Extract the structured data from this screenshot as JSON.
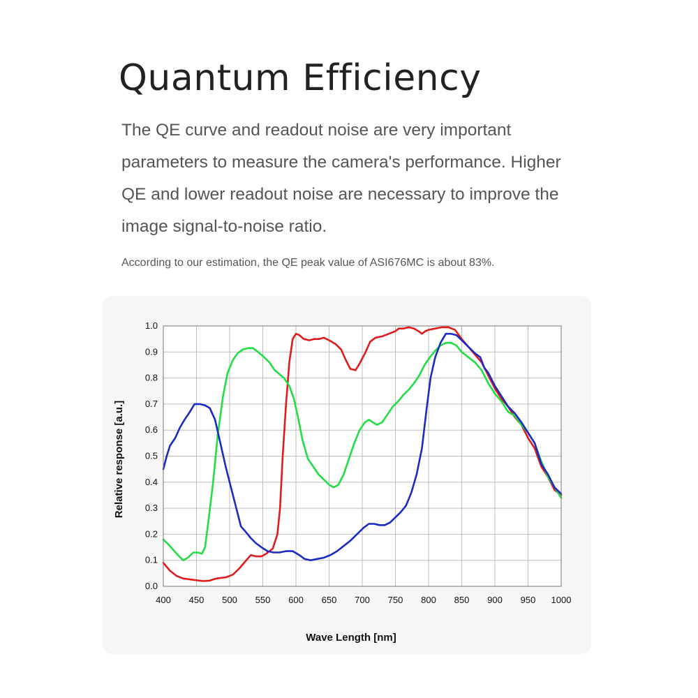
{
  "page": {
    "title": "Quantum Efficiency",
    "description": "The QE curve and readout noise are very important parameters to measure the camera's performance. Higher QE and lower readout noise are necessary to improve the image signal-to-noise ratio.",
    "note": "According to our estimation, the QE peak value of ASI676MC is about 83%."
  },
  "chart_data": {
    "type": "line",
    "xlabel": "Wave Length [nm]",
    "ylabel": "Relative  response [a.u.]",
    "xlim": [
      400,
      1000
    ],
    "ylim": [
      0.0,
      1.0
    ],
    "xticks": [
      400,
      450,
      500,
      550,
      600,
      650,
      700,
      750,
      800,
      850,
      900,
      950,
      1000
    ],
    "yticks": [
      "0.0",
      "0.1",
      "0.2",
      "0.3",
      "0.4",
      "0.5",
      "0.6",
      "0.7",
      "0.8",
      "0.9",
      "1.0"
    ],
    "grid": true,
    "series": [
      {
        "color": "#e01b1b",
        "points": [
          [
            400,
            0.09
          ],
          [
            410,
            0.06
          ],
          [
            420,
            0.04
          ],
          [
            430,
            0.03
          ],
          [
            445,
            0.025
          ],
          [
            460,
            0.02
          ],
          [
            470,
            0.022
          ],
          [
            480,
            0.03
          ],
          [
            495,
            0.035
          ],
          [
            505,
            0.045
          ],
          [
            515,
            0.07
          ],
          [
            525,
            0.1
          ],
          [
            532,
            0.12
          ],
          [
            540,
            0.115
          ],
          [
            548,
            0.115
          ],
          [
            555,
            0.125
          ],
          [
            565,
            0.145
          ],
          [
            572,
            0.2
          ],
          [
            576,
            0.3
          ],
          [
            580,
            0.5
          ],
          [
            585,
            0.7
          ],
          [
            590,
            0.86
          ],
          [
            595,
            0.95
          ],
          [
            600,
            0.97
          ],
          [
            605,
            0.965
          ],
          [
            612,
            0.95
          ],
          [
            620,
            0.945
          ],
          [
            628,
            0.95
          ],
          [
            635,
            0.95
          ],
          [
            642,
            0.955
          ],
          [
            650,
            0.945
          ],
          [
            660,
            0.93
          ],
          [
            668,
            0.91
          ],
          [
            675,
            0.87
          ],
          [
            682,
            0.835
          ],
          [
            690,
            0.83
          ],
          [
            697,
            0.86
          ],
          [
            705,
            0.9
          ],
          [
            712,
            0.94
          ],
          [
            720,
            0.955
          ],
          [
            730,
            0.96
          ],
          [
            740,
            0.97
          ],
          [
            750,
            0.98
          ],
          [
            755,
            0.99
          ],
          [
            762,
            0.99
          ],
          [
            770,
            0.995
          ],
          [
            778,
            0.99
          ],
          [
            785,
            0.98
          ],
          [
            790,
            0.97
          ],
          [
            795,
            0.98
          ],
          [
            800,
            0.985
          ],
          [
            810,
            0.99
          ],
          [
            820,
            0.995
          ],
          [
            830,
            0.995
          ],
          [
            840,
            0.985
          ],
          [
            850,
            0.95
          ],
          [
            860,
            0.92
          ],
          [
            870,
            0.89
          ],
          [
            880,
            0.86
          ],
          [
            890,
            0.81
          ],
          [
            900,
            0.76
          ],
          [
            910,
            0.72
          ],
          [
            920,
            0.69
          ],
          [
            930,
            0.65
          ],
          [
            940,
            0.62
          ],
          [
            950,
            0.57
          ],
          [
            960,
            0.53
          ],
          [
            970,
            0.46
          ],
          [
            980,
            0.42
          ],
          [
            990,
            0.37
          ],
          [
            1000,
            0.35
          ]
        ]
      },
      {
        "color": "#22dd44",
        "points": [
          [
            400,
            0.18
          ],
          [
            408,
            0.16
          ],
          [
            415,
            0.14
          ],
          [
            422,
            0.12
          ],
          [
            430,
            0.1
          ],
          [
            437,
            0.11
          ],
          [
            445,
            0.13
          ],
          [
            452,
            0.13
          ],
          [
            458,
            0.125
          ],
          [
            463,
            0.15
          ],
          [
            468,
            0.25
          ],
          [
            475,
            0.4
          ],
          [
            482,
            0.58
          ],
          [
            490,
            0.73
          ],
          [
            497,
            0.82
          ],
          [
            505,
            0.87
          ],
          [
            512,
            0.895
          ],
          [
            520,
            0.91
          ],
          [
            528,
            0.915
          ],
          [
            535,
            0.915
          ],
          [
            543,
            0.9
          ],
          [
            552,
            0.88
          ],
          [
            560,
            0.86
          ],
          [
            568,
            0.83
          ],
          [
            575,
            0.815
          ],
          [
            582,
            0.8
          ],
          [
            590,
            0.77
          ],
          [
            597,
            0.72
          ],
          [
            603,
            0.65
          ],
          [
            610,
            0.56
          ],
          [
            618,
            0.49
          ],
          [
            626,
            0.46
          ],
          [
            634,
            0.43
          ],
          [
            642,
            0.41
          ],
          [
            650,
            0.39
          ],
          [
            657,
            0.38
          ],
          [
            664,
            0.39
          ],
          [
            672,
            0.43
          ],
          [
            680,
            0.49
          ],
          [
            688,
            0.55
          ],
          [
            696,
            0.6
          ],
          [
            704,
            0.63
          ],
          [
            710,
            0.64
          ],
          [
            716,
            0.63
          ],
          [
            722,
            0.62
          ],
          [
            730,
            0.63
          ],
          [
            738,
            0.66
          ],
          [
            746,
            0.69
          ],
          [
            754,
            0.71
          ],
          [
            762,
            0.735
          ],
          [
            770,
            0.755
          ],
          [
            778,
            0.78
          ],
          [
            786,
            0.81
          ],
          [
            794,
            0.85
          ],
          [
            802,
            0.88
          ],
          [
            810,
            0.905
          ],
          [
            818,
            0.925
          ],
          [
            826,
            0.935
          ],
          [
            834,
            0.935
          ],
          [
            842,
            0.925
          ],
          [
            850,
            0.9
          ],
          [
            860,
            0.88
          ],
          [
            870,
            0.86
          ],
          [
            880,
            0.83
          ],
          [
            890,
            0.78
          ],
          [
            900,
            0.74
          ],
          [
            910,
            0.71
          ],
          [
            920,
            0.67
          ],
          [
            930,
            0.655
          ],
          [
            940,
            0.62
          ],
          [
            950,
            0.59
          ],
          [
            960,
            0.55
          ],
          [
            970,
            0.48
          ],
          [
            980,
            0.42
          ],
          [
            990,
            0.38
          ],
          [
            1000,
            0.34
          ]
        ]
      },
      {
        "color": "#1a2bc4",
        "points": [
          [
            400,
            0.45
          ],
          [
            405,
            0.5
          ],
          [
            410,
            0.54
          ],
          [
            418,
            0.57
          ],
          [
            425,
            0.61
          ],
          [
            432,
            0.64
          ],
          [
            440,
            0.67
          ],
          [
            447,
            0.7
          ],
          [
            455,
            0.7
          ],
          [
            463,
            0.695
          ],
          [
            470,
            0.685
          ],
          [
            478,
            0.64
          ],
          [
            486,
            0.55
          ],
          [
            494,
            0.46
          ],
          [
            502,
            0.38
          ],
          [
            510,
            0.3
          ],
          [
            517,
            0.23
          ],
          [
            524,
            0.21
          ],
          [
            532,
            0.185
          ],
          [
            540,
            0.165
          ],
          [
            548,
            0.15
          ],
          [
            557,
            0.135
          ],
          [
            566,
            0.13
          ],
          [
            575,
            0.13
          ],
          [
            585,
            0.135
          ],
          [
            595,
            0.135
          ],
          [
            605,
            0.12
          ],
          [
            613,
            0.105
          ],
          [
            622,
            0.1
          ],
          [
            632,
            0.105
          ],
          [
            642,
            0.11
          ],
          [
            652,
            0.12
          ],
          [
            662,
            0.135
          ],
          [
            672,
            0.155
          ],
          [
            682,
            0.175
          ],
          [
            692,
            0.2
          ],
          [
            702,
            0.225
          ],
          [
            710,
            0.24
          ],
          [
            718,
            0.24
          ],
          [
            726,
            0.235
          ],
          [
            734,
            0.235
          ],
          [
            742,
            0.245
          ],
          [
            750,
            0.265
          ],
          [
            758,
            0.285
          ],
          [
            766,
            0.31
          ],
          [
            774,
            0.36
          ],
          [
            782,
            0.43
          ],
          [
            790,
            0.53
          ],
          [
            797,
            0.68
          ],
          [
            803,
            0.8
          ],
          [
            810,
            0.88
          ],
          [
            818,
            0.935
          ],
          [
            826,
            0.97
          ],
          [
            834,
            0.97
          ],
          [
            842,
            0.965
          ],
          [
            850,
            0.945
          ],
          [
            860,
            0.92
          ],
          [
            870,
            0.895
          ],
          [
            878,
            0.88
          ],
          [
            884,
            0.84
          ],
          [
            890,
            0.82
          ],
          [
            900,
            0.77
          ],
          [
            910,
            0.73
          ],
          [
            920,
            0.69
          ],
          [
            930,
            0.665
          ],
          [
            940,
            0.63
          ],
          [
            950,
            0.59
          ],
          [
            960,
            0.55
          ],
          [
            970,
            0.47
          ],
          [
            980,
            0.43
          ],
          [
            990,
            0.38
          ],
          [
            1000,
            0.355
          ]
        ]
      }
    ]
  }
}
